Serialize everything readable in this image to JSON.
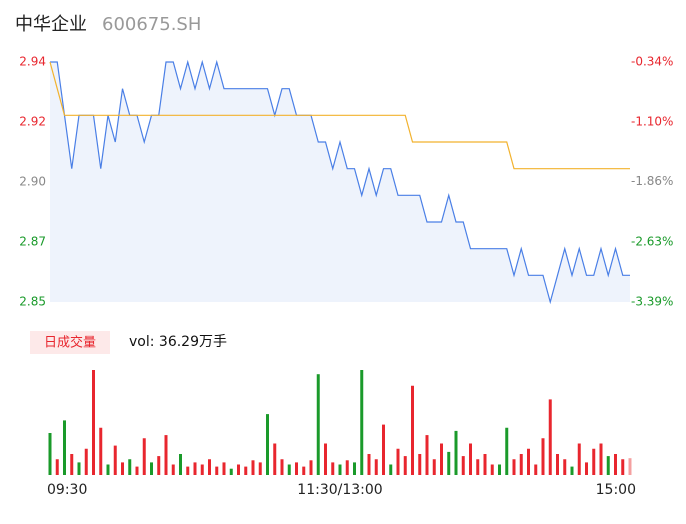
{
  "chart_data": [
    {
      "type": "line",
      "title": "中华企业",
      "subtitle": "600675.SH",
      "x": [
        0,
        3,
        6,
        9,
        12,
        15,
        18,
        21,
        24,
        27,
        30,
        33,
        36,
        39,
        42,
        45,
        48,
        51,
        54,
        57,
        60,
        63,
        66,
        69,
        72,
        75,
        78,
        81,
        84,
        87,
        90,
        93,
        96,
        99,
        102,
        105,
        108,
        111,
        114,
        117,
        120,
        123,
        126,
        129,
        132,
        135,
        138,
        141,
        144,
        147,
        150,
        153,
        156,
        159,
        162,
        165,
        168,
        171,
        174,
        177,
        180,
        183,
        186,
        189,
        192,
        195,
        198,
        201,
        204,
        207,
        210,
        213,
        216,
        219,
        222,
        225,
        228,
        231,
        234,
        237,
        240
      ],
      "xlim": [
        0,
        240
      ],
      "xticks": [
        {
          "value": 0,
          "label": "09:30"
        },
        {
          "value": 120,
          "label": "11:30/13:00"
        },
        {
          "value": 240,
          "label": "15:00"
        }
      ],
      "ylim": [
        2.85,
        2.94
      ],
      "yticks": [
        {
          "value": 2.85,
          "label": "2.85"
        },
        {
          "value": 2.8725,
          "label": "2.87"
        },
        {
          "value": 2.895,
          "label": "2.90"
        },
        {
          "value": 2.9175,
          "label": "2.92"
        },
        {
          "value": 2.94,
          "label": "2.94"
        }
      ],
      "ytick_colors": [
        "#1a9a2a",
        "#1a9a2a",
        "#888888",
        "#e8262e",
        "#e8262e"
      ],
      "y2lim": [
        -3.39,
        -0.34
      ],
      "y2ticks": [
        {
          "value": -3.39,
          "label": "-3.39%"
        },
        {
          "value": -2.63,
          "label": "-2.63%"
        },
        {
          "value": -1.86,
          "label": "-1.86%"
        },
        {
          "value": -1.1,
          "label": "-1.10%"
        },
        {
          "value": -0.34,
          "label": "-0.34%"
        }
      ],
      "series": [
        {
          "color": "#4a7fe6",
          "values": [
            2.94,
            2.94,
            2.92,
            2.9,
            2.92,
            2.92,
            2.92,
            2.9,
            2.92,
            2.91,
            2.93,
            2.92,
            2.92,
            2.91,
            2.92,
            2.92,
            2.94,
            2.94,
            2.93,
            2.94,
            2.93,
            2.94,
            2.93,
            2.94,
            2.93,
            2.93,
            2.93,
            2.93,
            2.93,
            2.93,
            2.93,
            2.92,
            2.93,
            2.93,
            2.92,
            2.92,
            2.92,
            2.91,
            2.91,
            2.9,
            2.91,
            2.9,
            2.9,
            2.89,
            2.9,
            2.89,
            2.9,
            2.9,
            2.89,
            2.89,
            2.89,
            2.89,
            2.88,
            2.88,
            2.88,
            2.89,
            2.88,
            2.88,
            2.87,
            2.87,
            2.87,
            2.87,
            2.87,
            2.87,
            2.86,
            2.87,
            2.86,
            2.86,
            2.86,
            2.85,
            2.86,
            2.87,
            2.86,
            2.87,
            2.86,
            2.86,
            2.87,
            2.86,
            2.87,
            2.86,
            2.86
          ]
        },
        {
          "color": "#f2b22e",
          "values": [
            2.94,
            2.93,
            2.92,
            2.92,
            2.92,
            2.92,
            2.92,
            2.92,
            2.92,
            2.92,
            2.92,
            2.92,
            2.92,
            2.92,
            2.92,
            2.92,
            2.92,
            2.92,
            2.92,
            2.92,
            2.92,
            2.92,
            2.92,
            2.92,
            2.92,
            2.92,
            2.92,
            2.92,
            2.92,
            2.92,
            2.92,
            2.92,
            2.92,
            2.92,
            2.92,
            2.92,
            2.92,
            2.92,
            2.92,
            2.92,
            2.92,
            2.92,
            2.92,
            2.92,
            2.92,
            2.92,
            2.92,
            2.92,
            2.92,
            2.92,
            2.91,
            2.91,
            2.91,
            2.91,
            2.91,
            2.91,
            2.91,
            2.91,
            2.91,
            2.91,
            2.91,
            2.91,
            2.91,
            2.91,
            2.9,
            2.9,
            2.9,
            2.9,
            2.9,
            2.9,
            2.9,
            2.9,
            2.9,
            2.9,
            2.9,
            2.9,
            2.9,
            2.9,
            2.9,
            2.9,
            2.9
          ]
        }
      ]
    },
    {
      "type": "bar",
      "title": "日成交量",
      "annotation": "vol: 36.29万手",
      "ylim": [
        0,
        100
      ],
      "values": [
        40,
        15,
        52,
        20,
        12,
        25,
        100,
        45,
        10,
        28,
        12,
        15,
        8,
        35,
        12,
        18,
        38,
        10,
        20,
        8,
        12,
        10,
        15,
        8,
        12,
        6,
        10,
        8,
        14,
        12,
        58,
        30,
        15,
        10,
        12,
        8,
        14,
        96,
        30,
        12,
        10,
        14,
        12,
        100,
        20,
        15,
        48,
        10,
        25,
        18,
        85,
        20,
        38,
        15,
        30,
        22,
        42,
        18,
        30,
        15,
        20,
        10,
        10,
        45,
        15,
        20,
        25,
        10,
        35,
        72,
        20,
        15,
        8,
        30,
        12,
        25,
        30,
        18,
        20,
        15,
        16
      ],
      "colors": [
        "#1a9a2a",
        "#e8262e",
        "#1a9a2a",
        "#e8262e",
        "#1a9a2a",
        "#e8262e",
        "#e8262e",
        "#e8262e",
        "#1a9a2a",
        "#e8262e",
        "#e8262e",
        "#1a9a2a",
        "#e8262e",
        "#e8262e",
        "#1a9a2a",
        "#e8262e",
        "#e8262e",
        "#e8262e",
        "#1a9a2a",
        "#e8262e",
        "#e8262e",
        "#e8262e",
        "#e8262e",
        "#e8262e",
        "#e8262e",
        "#1a9a2a",
        "#e8262e",
        "#e8262e",
        "#e8262e",
        "#e8262e",
        "#1a9a2a",
        "#e8262e",
        "#e8262e",
        "#1a9a2a",
        "#e8262e",
        "#e8262e",
        "#e8262e",
        "#1a9a2a",
        "#e8262e",
        "#e8262e",
        "#1a9a2a",
        "#e8262e",
        "#1a9a2a",
        "#1a9a2a",
        "#e8262e",
        "#e8262e",
        "#e8262e",
        "#1a9a2a",
        "#e8262e",
        "#e8262e",
        "#e8262e",
        "#e8262e",
        "#e8262e",
        "#e8262e",
        "#e8262e",
        "#1a9a2a",
        "#1a9a2a",
        "#e8262e",
        "#e8262e",
        "#e8262e",
        "#e8262e",
        "#e8262e",
        "#1a9a2a",
        "#1a9a2a",
        "#e8262e",
        "#e8262e",
        "#e8262e",
        "#e8262e",
        "#e8262e",
        "#e8262e",
        "#e8262e",
        "#e8262e",
        "#1a9a2a",
        "#e8262e",
        "#e8262e",
        "#e8262e",
        "#e8262e",
        "#1a9a2a",
        "#e8262e",
        "#e8262e",
        "#f4a0a0"
      ]
    }
  ]
}
